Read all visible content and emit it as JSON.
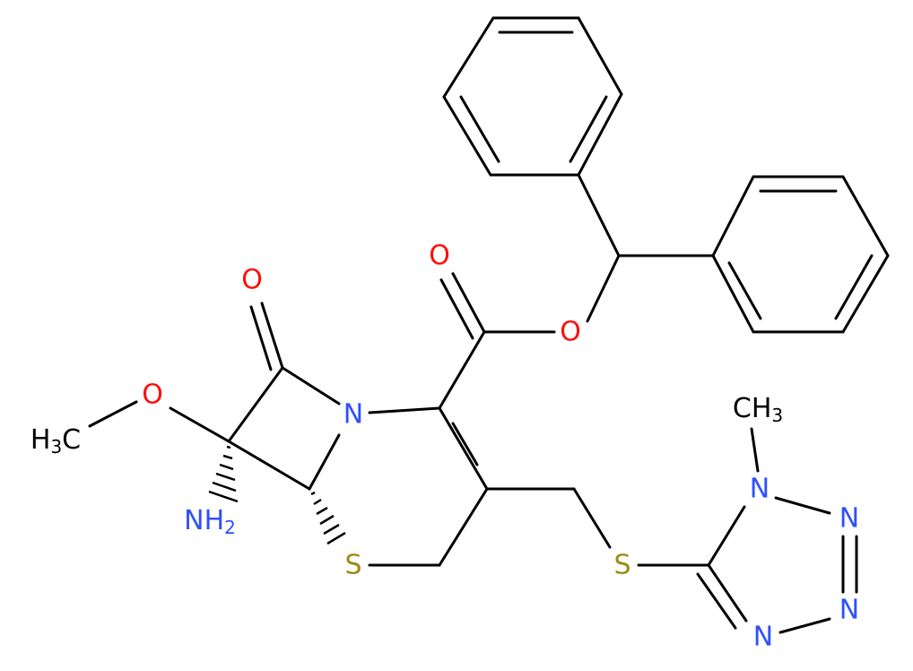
{
  "atoms": [
    {
      "label": "O"
    },
    {
      "label": "O"
    },
    {
      "label": "O"
    },
    {
      "label": "O"
    },
    {
      "label": "N"
    },
    {
      "label": "S"
    },
    {
      "label": "S"
    },
    {
      "label": "N"
    },
    {
      "label": "N"
    },
    {
      "label": "N"
    },
    {
      "label": "N"
    },
    {
      "parts": [
        "N",
        "H",
        "2"
      ]
    },
    {
      "parts": [
        "H",
        "3",
        "C"
      ]
    },
    {
      "parts": [
        "C",
        "H",
        "3"
      ]
    }
  ]
}
